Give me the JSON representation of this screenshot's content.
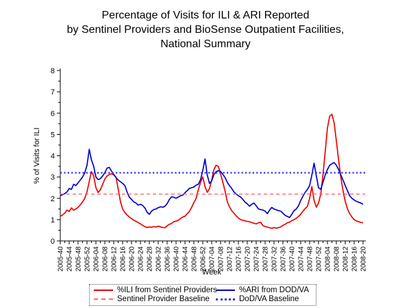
{
  "chart_data": {
    "type": "line",
    "title_lines": [
      "Percentage of Visits for ILI & ARI Reported",
      "by Sentinel Providers and BioSense Outpatient Facilities,",
      "National Summary"
    ],
    "xlabel": "Week",
    "ylabel": "% of Visits for ILI",
    "ylim": [
      0,
      8
    ],
    "y_ticks": [
      0,
      1,
      2,
      3,
      4,
      5,
      6,
      7,
      8
    ],
    "x_tick_every_weeks": 4,
    "x_tick_labels": [
      "2005-40",
      "2005-44",
      "2005-48",
      "2005-52",
      "2006-04",
      "2006-08",
      "2006-12",
      "2006-16",
      "2006-20",
      "2006-24",
      "2006-28",
      "2006-32",
      "2006-36",
      "2006-40",
      "2006-44",
      "2006-48",
      "2006-52",
      "2007-04",
      "2007-08",
      "2007-12",
      "2007-16",
      "2007-20",
      "2007-24",
      "2007-28",
      "2007-32",
      "2007-36",
      "2007-40",
      "2007-44",
      "2007-48",
      "2007-52",
      "2008-04",
      "2008-08",
      "2008-12",
      "2008-16",
      "2008-20"
    ],
    "grid": false,
    "legend_position": "bottom",
    "series": [
      {
        "name": "%ILI from Sentinel Providers",
        "color": "#EE0000",
        "style": "solid",
        "values": [
          1.15,
          1.22,
          1.3,
          1.45,
          1.38,
          1.55,
          1.44,
          1.5,
          1.58,
          1.7,
          1.83,
          2.0,
          2.3,
          2.8,
          3.25,
          3.05,
          2.5,
          2.27,
          2.4,
          2.65,
          2.9,
          3.05,
          3.12,
          3.15,
          3.1,
          3.0,
          2.45,
          1.85,
          1.5,
          1.33,
          1.22,
          1.12,
          1.05,
          0.97,
          0.92,
          0.86,
          0.8,
          0.73,
          0.67,
          0.63,
          0.66,
          0.64,
          0.67,
          0.65,
          0.69,
          0.66,
          0.63,
          0.62,
          0.71,
          0.78,
          0.82,
          0.9,
          0.93,
          0.97,
          1.05,
          1.12,
          1.16,
          1.28,
          1.38,
          1.58,
          1.8,
          2.0,
          2.4,
          2.75,
          3.0,
          2.55,
          2.28,
          2.45,
          2.85,
          3.35,
          3.55,
          3.5,
          3.15,
          2.75,
          2.35,
          1.85,
          1.6,
          1.42,
          1.3,
          1.18,
          1.08,
          1.0,
          0.97,
          0.94,
          0.92,
          0.9,
          0.86,
          0.83,
          0.8,
          0.85,
          0.88,
          0.72,
          0.68,
          0.65,
          0.62,
          0.59,
          0.63,
          0.6,
          0.62,
          0.66,
          0.73,
          0.78,
          0.85,
          0.88,
          0.95,
          1.0,
          1.06,
          1.15,
          1.25,
          1.4,
          1.52,
          1.62,
          2.0,
          2.55,
          1.9,
          1.58,
          1.78,
          2.2,
          3.1,
          4.2,
          5.3,
          5.85,
          5.95,
          5.55,
          4.7,
          3.8,
          3.0,
          2.35,
          1.85,
          1.5,
          1.28,
          1.12,
          1.0,
          0.94,
          0.9,
          0.87,
          0.85
        ]
      },
      {
        "name": "%ARI from DOD/VA",
        "color": "#0000CC",
        "style": "solid",
        "values": [
          2.12,
          2.17,
          2.22,
          2.3,
          2.46,
          2.42,
          2.66,
          2.6,
          2.73,
          2.86,
          3.0,
          3.2,
          3.55,
          4.3,
          3.8,
          3.5,
          3.0,
          2.88,
          2.92,
          3.05,
          3.2,
          3.42,
          3.45,
          3.28,
          3.12,
          2.98,
          2.86,
          2.78,
          2.7,
          2.6,
          2.3,
          2.05,
          1.95,
          1.83,
          1.78,
          1.68,
          1.72,
          1.66,
          1.55,
          1.35,
          1.25,
          1.4,
          1.47,
          1.5,
          1.56,
          1.6,
          1.58,
          1.63,
          1.75,
          1.95,
          2.07,
          2.05,
          2.0,
          2.06,
          2.12,
          2.15,
          2.26,
          2.36,
          2.46,
          2.5,
          2.53,
          2.62,
          2.66,
          2.88,
          3.3,
          3.85,
          3.1,
          2.7,
          2.82,
          3.12,
          3.25,
          3.3,
          3.26,
          3.12,
          2.98,
          2.75,
          2.6,
          2.46,
          2.3,
          2.2,
          2.12,
          2.06,
          1.95,
          1.82,
          1.74,
          1.63,
          1.72,
          1.78,
          1.65,
          1.5,
          1.47,
          1.45,
          1.4,
          1.28,
          1.45,
          1.57,
          1.5,
          1.46,
          1.42,
          1.4,
          1.3,
          1.2,
          1.15,
          1.1,
          1.25,
          1.42,
          1.5,
          1.65,
          1.9,
          2.1,
          2.28,
          2.42,
          2.6,
          3.1,
          3.65,
          3.05,
          2.5,
          2.42,
          2.75,
          3.1,
          3.35,
          3.55,
          3.62,
          3.68,
          3.55,
          3.35,
          3.1,
          2.85,
          2.6,
          2.35,
          2.12,
          2.0,
          1.92,
          1.86,
          1.82,
          1.78,
          1.72
        ]
      },
      {
        "name": "Sentinel Provider Baseline",
        "color": "#FF6666",
        "style": "dashed",
        "baseline_value": 2.2
      },
      {
        "name": "DoD/VA Baseline",
        "color": "#3333FF",
        "style": "dotted",
        "baseline_value": 3.2
      }
    ]
  }
}
